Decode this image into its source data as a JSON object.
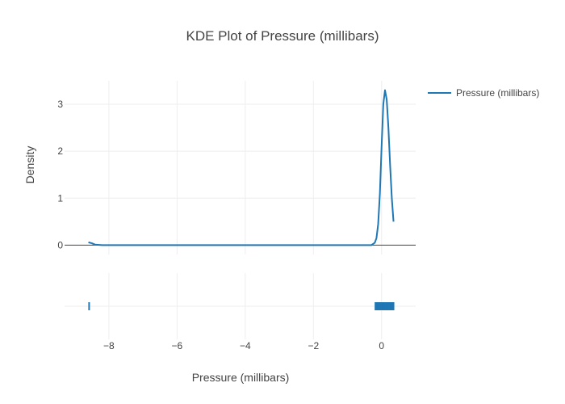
{
  "chart_data": {
    "type": "line",
    "title": "KDE Plot of Pressure (millibars)",
    "xlabel": "Pressure (millibars)",
    "ylabel": "Density",
    "xlim": [
      -9.3,
      1.0
    ],
    "ylim": [
      -0.2,
      3.5
    ],
    "x_ticks": [
      -8,
      -6,
      -4,
      -2,
      0
    ],
    "x_tick_labels": [
      "−8",
      "−6",
      "−4",
      "−2",
      "0"
    ],
    "y_ticks": [
      0,
      1,
      2,
      3
    ],
    "y_tick_labels": [
      "0",
      "1",
      "2",
      "3"
    ],
    "grid": true,
    "legend_position": "top-right",
    "series": [
      {
        "name": "Pressure (millibars)",
        "color": "#1f77b4",
        "x": [
          -8.6,
          -8.5,
          -8.4,
          -8.2,
          -8.0,
          -6.0,
          -4.0,
          -2.0,
          -0.5,
          -0.3,
          -0.2,
          -0.15,
          -0.1,
          -0.05,
          0.0,
          0.05,
          0.1,
          0.15,
          0.2,
          0.25,
          0.3,
          0.35
        ],
        "y": [
          0.06,
          0.04,
          0.01,
          0.0,
          0.0,
          0.0,
          0.0,
          0.0,
          0.0,
          0.0,
          0.05,
          0.15,
          0.45,
          1.1,
          2.1,
          3.0,
          3.3,
          3.1,
          2.5,
          1.7,
          1.0,
          0.5
        ]
      }
    ],
    "rug": {
      "color": "#1f77b4",
      "points": [
        -8.58,
        -0.18,
        -0.15,
        -0.12,
        -0.09,
        -0.06,
        -0.03,
        0.0,
        0.03,
        0.06,
        0.09,
        0.12,
        0.15,
        0.18,
        0.21,
        0.24,
        0.27,
        0.3,
        0.33,
        0.35
      ]
    }
  }
}
